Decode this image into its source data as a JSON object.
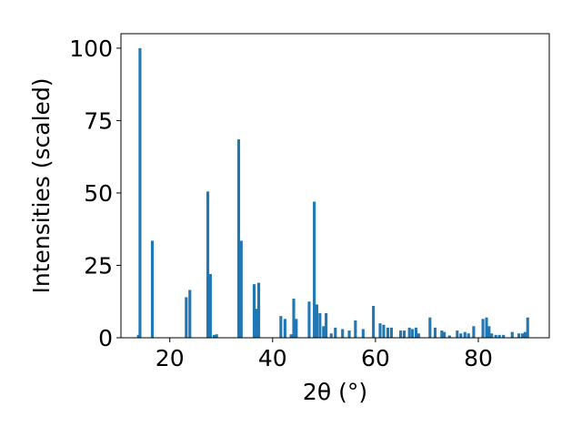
{
  "chart_data": {
    "type": "bar",
    "title": "",
    "xlabel": "2θ (°)",
    "ylabel": "Intensities (scaled)",
    "xlim": [
      10.5,
      93.8
    ],
    "ylim": [
      0,
      105
    ],
    "bar_width": 0.55,
    "bar_color": "#1f77b4",
    "grid": false,
    "xticks": [
      20,
      40,
      60,
      80
    ],
    "xtick_labels": [
      "20",
      "40",
      "60",
      "80"
    ],
    "yticks": [
      0,
      25,
      50,
      75,
      100
    ],
    "ytick_labels": [
      "0",
      "25",
      "50",
      "75",
      "100"
    ],
    "x": [
      13.9,
      14.2,
      16.6,
      23.2,
      23.9,
      27.4,
      27.9,
      28.6,
      29.1,
      33.4,
      33.9,
      36.4,
      36.9,
      37.3,
      41.6,
      42.4,
      43.6,
      44.1,
      44.6,
      47.1,
      48.1,
      48.6,
      49.2,
      49.9,
      50.4,
      51.4,
      52.2,
      53.6,
      54.9,
      56.1,
      57.6,
      59.6,
      60.9,
      61.6,
      62.4,
      63.1,
      64.9,
      65.6,
      66.6,
      67.2,
      67.9,
      68.4,
      70.6,
      71.6,
      72.9,
      73.4,
      74.4,
      75.9,
      76.6,
      77.4,
      78.1,
      79.1,
      80.9,
      81.6,
      82.1,
      82.6,
      83.4,
      84.1,
      84.9,
      86.6,
      87.9,
      88.6,
      89.1,
      89.6
    ],
    "values": [
      1.0,
      100.0,
      33.5,
      14.0,
      16.5,
      50.5,
      22.0,
      1.0,
      1.2,
      68.5,
      33.5,
      18.5,
      10.0,
      19.0,
      7.5,
      6.5,
      1.2,
      13.5,
      6.5,
      12.5,
      47.0,
      11.5,
      8.5,
      4.0,
      8.5,
      1.5,
      3.5,
      3.0,
      2.5,
      6.0,
      3.0,
      11.0,
      5.0,
      4.5,
      3.5,
      3.5,
      2.5,
      2.5,
      3.5,
      3.0,
      3.5,
      1.5,
      7.0,
      3.5,
      2.5,
      2.0,
      0.8,
      2.5,
      1.5,
      2.0,
      1.5,
      4.0,
      6.5,
      7.0,
      4.0,
      1.5,
      1.0,
      1.0,
      1.0,
      2.0,
      1.5,
      1.5,
      2.0,
      7.0
    ]
  }
}
